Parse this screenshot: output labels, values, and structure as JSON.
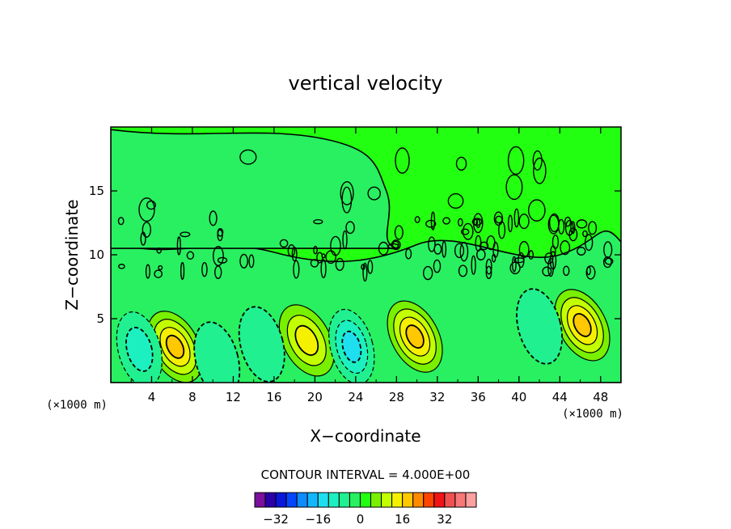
{
  "chart_data": {
    "type": "heatmap",
    "title": "vertical velocity",
    "xlabel": "X−coordinate",
    "ylabel": "Z−coordinate",
    "x_unit": "(×1000 m)",
    "z_unit": "(×1000 m)",
    "xlim": [
      0,
      50
    ],
    "ylim": [
      0,
      20
    ],
    "x_ticks": [
      4,
      8,
      12,
      16,
      20,
      24,
      28,
      32,
      36,
      40,
      44,
      48
    ],
    "y_ticks": [
      5,
      10,
      15
    ],
    "contour_interval_text": "CONTOUR INTERVAL = 4.000E+00",
    "contour_interval": 4,
    "colorbar": {
      "colors": [
        "#7b0f9e",
        "#2a00a8",
        "#0a17d8",
        "#0545ff",
        "#0d8cff",
        "#12b6ff",
        "#1edff0",
        "#1cf0c0",
        "#20f090",
        "#28f060",
        "#22ff10",
        "#78f000",
        "#c2ff00",
        "#f5f000",
        "#ffc800",
        "#ff8a00",
        "#ff4400",
        "#f01414",
        "#f05050",
        "#f87878",
        "#fca0a0"
      ],
      "labels": [
        -32,
        -16,
        0,
        16,
        32
      ],
      "label_text": [
        "−32",
        "−16",
        "0",
        "16",
        "32"
      ],
      "min": -40,
      "max": 44
    },
    "background_color": "#22ff10",
    "features": [
      {
        "kind": "updraft",
        "x": 6.3,
        "z": 2.8,
        "peak": 16
      },
      {
        "kind": "updraft",
        "x": 19.2,
        "z": 3.3,
        "peak": 12
      },
      {
        "kind": "updraft",
        "x": 29.8,
        "z": 3.6,
        "peak": 16
      },
      {
        "kind": "updraft",
        "x": 46.2,
        "z": 4.5,
        "peak": 16
      },
      {
        "kind": "downdraft",
        "x": 2.8,
        "z": 2.6,
        "peak": -8
      },
      {
        "kind": "downdraft",
        "x": 23.6,
        "z": 2.8,
        "peak": -12
      },
      {
        "kind": "downdraft",
        "x": 10.4,
        "z": 1.8,
        "peak": -4
      },
      {
        "kind": "downdraft",
        "x": 14.8,
        "z": 3.0,
        "peak": -4
      },
      {
        "kind": "downdraft",
        "x": 42.0,
        "z": 4.4,
        "peak": -4
      }
    ]
  }
}
